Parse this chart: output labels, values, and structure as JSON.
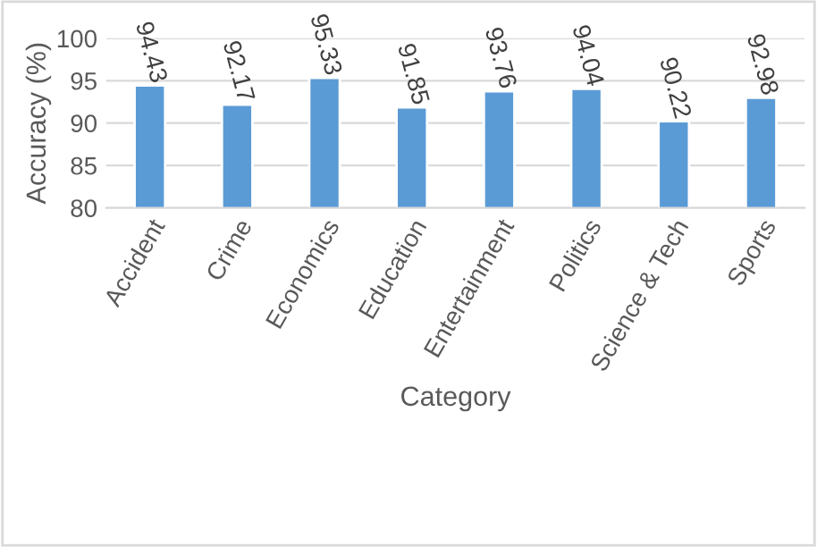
{
  "chart_data": {
    "type": "bar",
    "xlabel": "Category",
    "ylabel": "Accuracy (%)",
    "categories": [
      "Accident",
      "Crime",
      "Economics",
      "Education",
      "Entertainment",
      "Politics",
      "Science & Tech",
      "Sports"
    ],
    "values": [
      94.43,
      92.17,
      95.33,
      91.85,
      93.76,
      94.04,
      90.22,
      92.98
    ],
    "color": "#5b9bd5",
    "ylim": [
      80,
      100
    ],
    "yticks": [
      80,
      85,
      90,
      95,
      100
    ],
    "grid": "y",
    "data_labels": true
  }
}
